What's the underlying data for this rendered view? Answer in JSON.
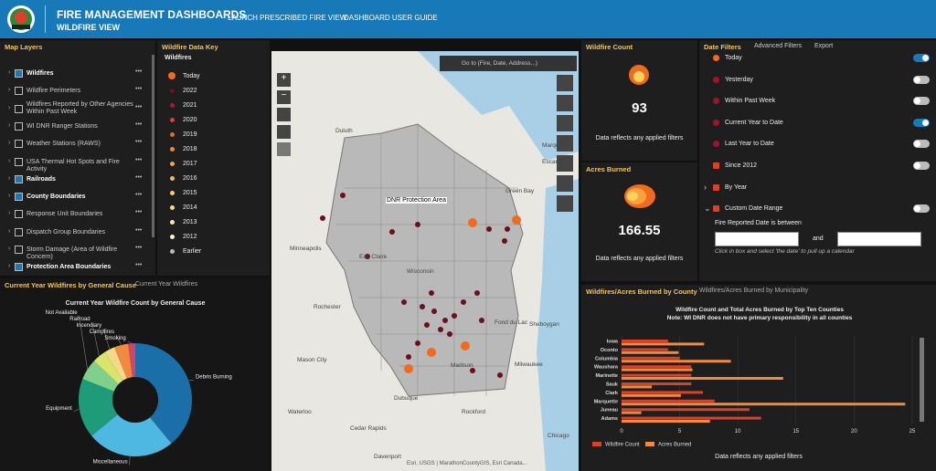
{
  "header": {
    "title": "FIRE MANAGEMENT DASHBOARDS",
    "subtitle": "WILDFIRE VIEW",
    "nav": [
      "LAUNCH PRESCRIBED FIRE VIEW",
      "DASHBOARD USER GUIDE"
    ]
  },
  "map_layers": {
    "title": "Map Layers",
    "layers": [
      {
        "name": "Wildfires",
        "checked": true
      },
      {
        "name": "Wildfire Perimeters",
        "checked": false
      },
      {
        "name": "Wildfires Reported by Other Agencies Within Past Week",
        "checked": false
      },
      {
        "name": "WI DNR Ranger Stations",
        "checked": false
      },
      {
        "name": "Weather Stations (RAWS)",
        "checked": false
      },
      {
        "name": "USA Thermal Hot Spots and Fire Activity",
        "checked": false
      },
      {
        "name": "Railroads",
        "checked": true
      },
      {
        "name": "County Boundaries",
        "checked": true
      },
      {
        "name": "Response Unit Boundaries",
        "checked": false
      },
      {
        "name": "Dispatch Group Boundaries",
        "checked": false
      },
      {
        "name": "Storm Damage (Area of Wildfire Concern)",
        "checked": false
      },
      {
        "name": "Protection Area Boundaries",
        "checked": true
      }
    ]
  },
  "data_key": {
    "title": "Wildfire Data Key",
    "heading": "Wildfires",
    "items": [
      {
        "label": "Today",
        "color": "#f26b1d"
      },
      {
        "label": "2022",
        "color": "#7a0a1e"
      },
      {
        "label": "2021",
        "color": "#b0182a"
      },
      {
        "label": "2020",
        "color": "#d9412b"
      },
      {
        "label": "2019",
        "color": "#e8682f"
      },
      {
        "label": "2018",
        "color": "#f08a3c"
      },
      {
        "label": "2017",
        "color": "#f5a54a"
      },
      {
        "label": "2016",
        "color": "#f7bb5c"
      },
      {
        "label": "2015",
        "color": "#f9cd6e"
      },
      {
        "label": "2014",
        "color": "#fadc86"
      },
      {
        "label": "2013",
        "color": "#fbe8a6"
      },
      {
        "label": "2012",
        "color": "#fdf3cc"
      },
      {
        "label": "Earlier",
        "color": "#bbbbbb"
      }
    ]
  },
  "map": {
    "search": "Go to (Fire, Date, Address...)",
    "protection_label": "DNR Protection Area",
    "attribution": "Esri, USGS | MarathonCountyGIS, Esri Canada...",
    "labels": [
      "Duluth",
      "Marquette",
      "Escanaba",
      "Minneapolis",
      "Eau Claire",
      "Wisconsin",
      "Green Bay",
      "Rochester",
      "Fond du Lac",
      "Sheboygan",
      "Mason City",
      "Madison",
      "Milwaukee",
      "Dubuque",
      "Rockford",
      "Waterloo",
      "Cedar Rapids",
      "Davenport",
      "Chicago"
    ]
  },
  "wildfire_count": {
    "title": "Wildfire Count",
    "value": 93,
    "note": "Data reflects any applied filters"
  },
  "acres_burned": {
    "title": "Acres Burned",
    "value": 166.55,
    "note": "Data reflects any applied filters"
  },
  "date_filters": {
    "tabs": [
      "Date Filters",
      "Advanced Filters",
      "Export"
    ],
    "items": [
      {
        "label": "Today",
        "on": true
      },
      {
        "label": "Yesterday",
        "on": false
      },
      {
        "label": "Within Past Week",
        "on": false
      },
      {
        "label": "Current Year to Date",
        "on": true
      },
      {
        "label": "Last Year to Date",
        "on": false
      },
      {
        "label": "Since 2012",
        "on": false
      },
      {
        "label": "By Year",
        "on": null
      },
      {
        "label": "Custom Date Range",
        "on": false
      }
    ],
    "range_label": "Fire Reported Date is between",
    "and": "and",
    "hint": "Click in box and select 'the date' to pull up a calendar"
  },
  "cause_panel": {
    "tabs": [
      "Current Year Wildfires by General Cause",
      "Current Year Wildfires"
    ]
  },
  "county_panel": {
    "tabs": [
      "Wildfires/Acres Burned by County",
      "Wildfires/Acres Burned by Municipality"
    ],
    "note": "Data reflects any applied filters"
  },
  "chart_data": [
    {
      "type": "pie",
      "title": "Current Year Wildfire Count by General Cause",
      "donut": true,
      "categories": [
        "Debris Burning",
        "Miscellaneous",
        "Equipment",
        "Not Available",
        "Railroad",
        "Incendiary",
        "Campfires",
        "Smoking"
      ],
      "values": [
        39,
        25,
        17,
        6,
        4,
        3,
        4,
        2
      ],
      "colors": [
        "#1a6fa8",
        "#4fb8e0",
        "#1e9b78",
        "#7fd08a",
        "#d8e46a",
        "#f5d98a",
        "#f08a3c",
        "#d0456a"
      ]
    },
    {
      "type": "bar",
      "orientation": "horizontal",
      "title": "Wildfire Count and Total Acres Burned by Top Ten Counties",
      "subtitle": "Note: WI DNR does not have primary responsibility in all counties",
      "categories": [
        "Iowa",
        "Oconto",
        "Columbia",
        "Waushara",
        "Marinette",
        "Sauk",
        "Clark",
        "Marquette",
        "Juneau",
        "Adams"
      ],
      "series": [
        {
          "name": "Wildfire Count",
          "color": "#d9412b",
          "values": [
            4,
            4,
            5,
            6,
            6,
            6,
            7,
            8,
            11,
            12
          ]
        },
        {
          "name": "Acres Burned",
          "color": "#f08a3c",
          "values": [
            7.1,
            4.9,
            9.4,
            6.1,
            13.9,
            2.6,
            5.1,
            24.4,
            1.7,
            7.6
          ]
        }
      ],
      "xlim": [
        0,
        25
      ],
      "xticks": [
        0,
        5,
        10,
        15,
        20,
        25
      ]
    }
  ]
}
